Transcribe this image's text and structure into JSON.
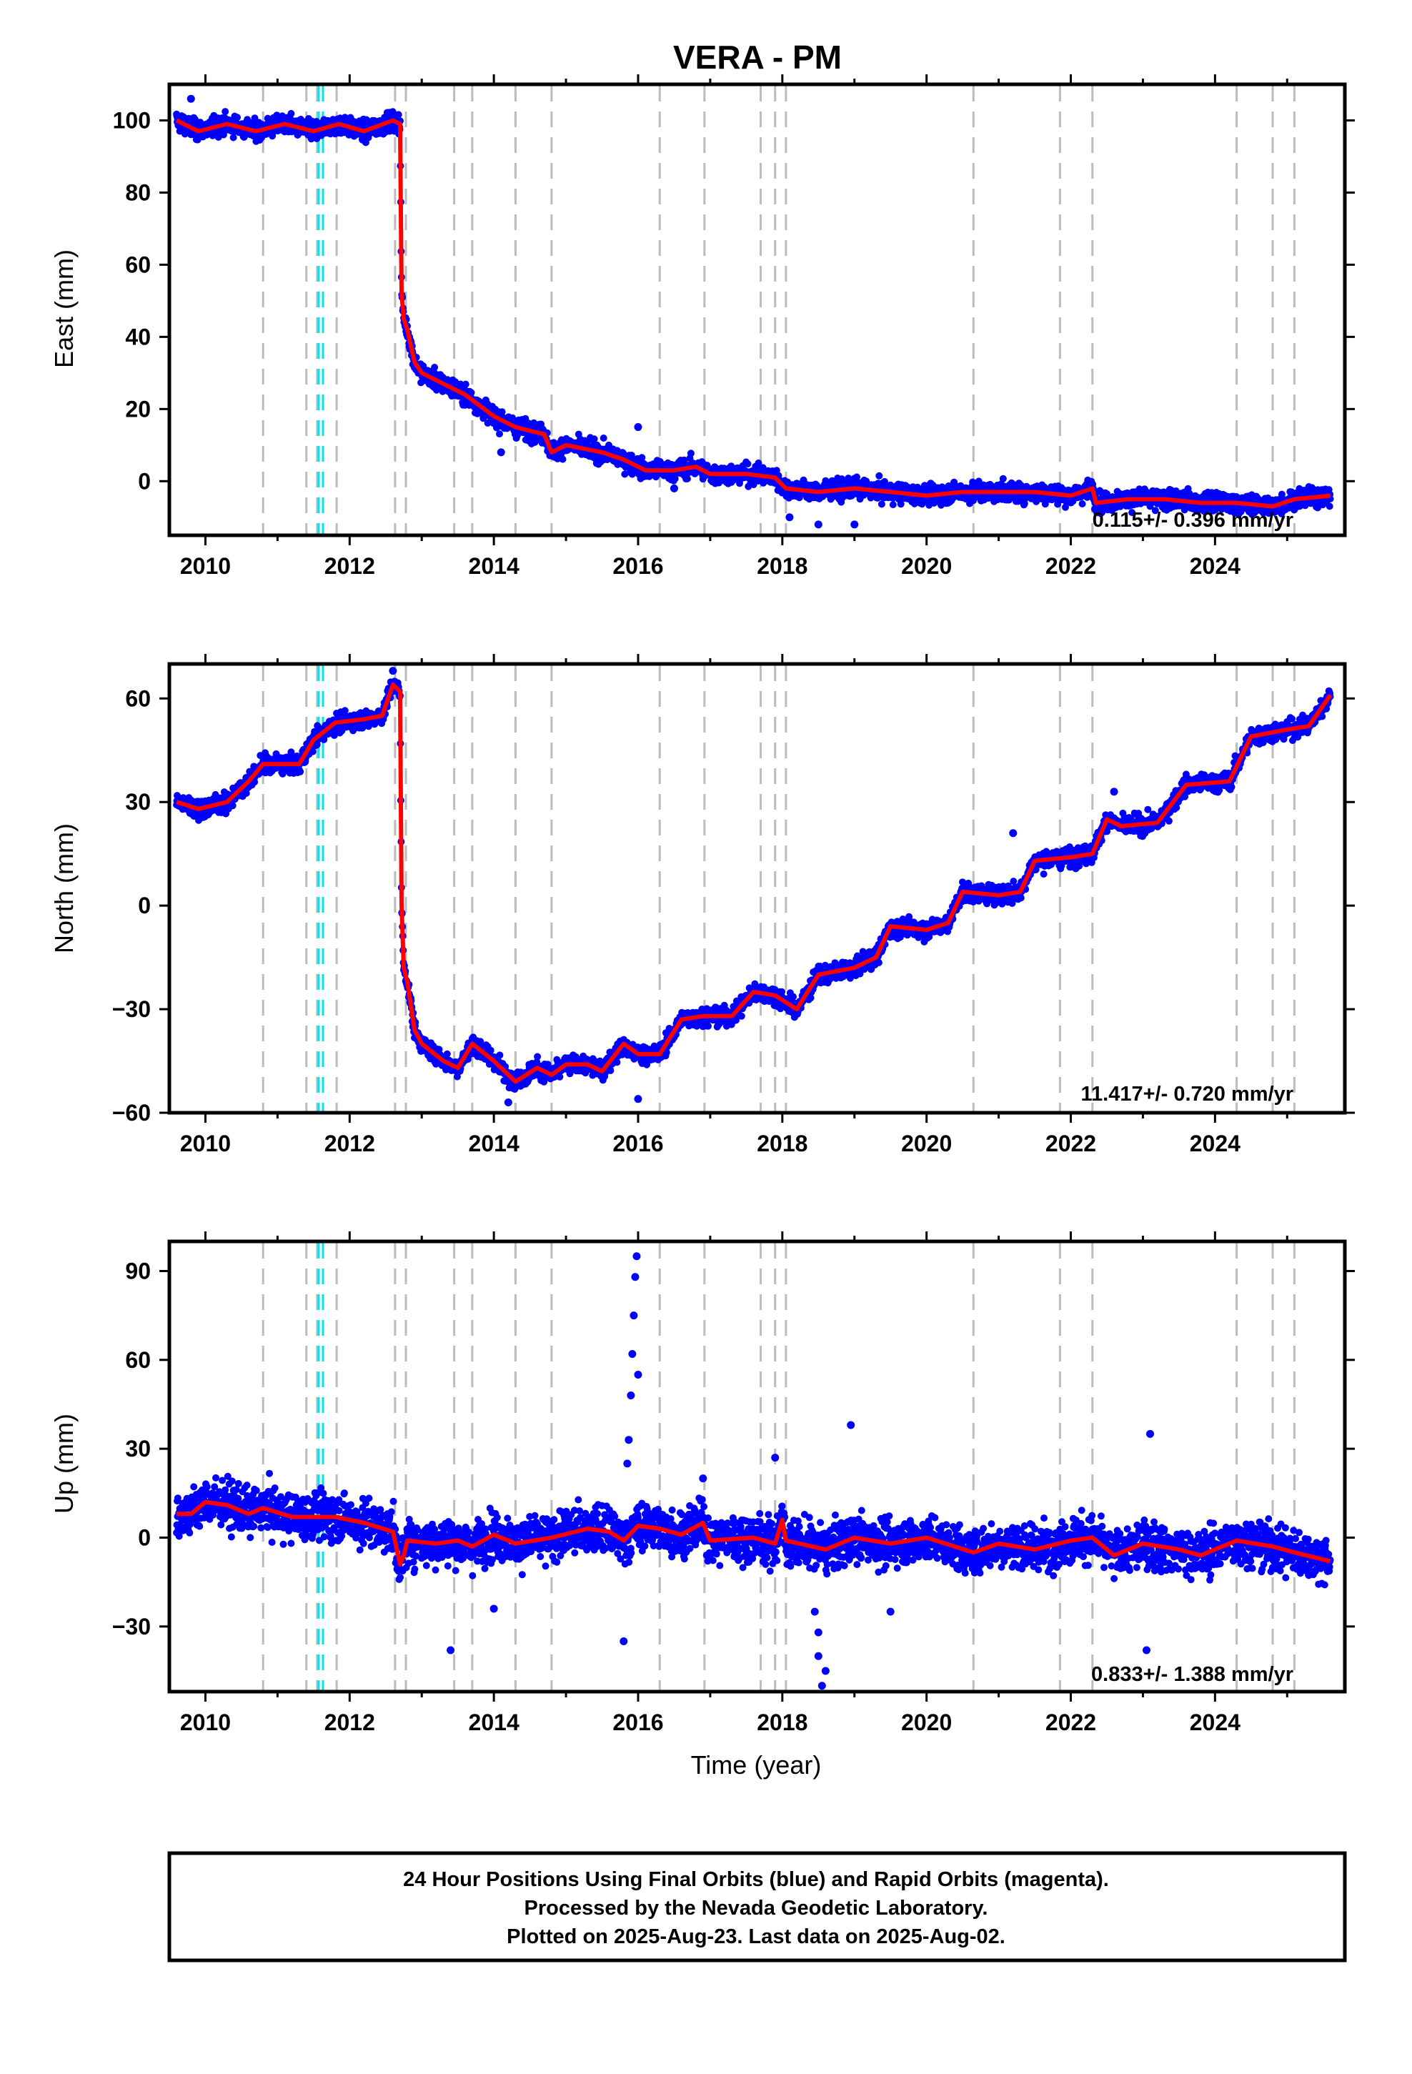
{
  "chart_data": {
    "type": "scatter",
    "title": "VERA - PM",
    "xlabel": "Time (year)",
    "xlim": [
      2009.5,
      2025.8
    ],
    "x_ticks": [
      "2010",
      "2012",
      "2014",
      "2016",
      "2018",
      "2020",
      "2022",
      "2024"
    ],
    "legend": "none",
    "colors": {
      "final_orbit_points": "#0000ff",
      "rapid_orbit_points": "#ff00ff",
      "model_fit": "#ff0000",
      "equipment_change_lines": "#bbbbbb",
      "earthquake_lines": "#00e5ee"
    },
    "equipment_change_epochs": [
      2010.8,
      2011.4,
      2011.55,
      2011.82,
      2012.63,
      2012.78,
      2013.45,
      2013.7,
      2014.3,
      2014.8,
      2016.3,
      2016.92,
      2017.7,
      2017.9,
      2018.05,
      2020.65,
      2021.85,
      2022.3,
      2024.3,
      2024.8,
      2025.1
    ],
    "earthquake_epochs": [
      2011.57,
      2011.63
    ],
    "panels": [
      {
        "id": "east",
        "ylabel": "East (mm)",
        "ylim": [
          -15,
          110
        ],
        "y_ticks": [
          "0",
          "20",
          "40",
          "60",
          "80",
          "100"
        ],
        "rate_text": "0.115+/- 0.396 mm/yr",
        "noise": 2.2,
        "model_fit": [
          [
            2009.6,
            100
          ],
          [
            2009.9,
            97
          ],
          [
            2010.3,
            99
          ],
          [
            2010.7,
            97
          ],
          [
            2011.1,
            99
          ],
          [
            2011.5,
            97
          ],
          [
            2011.85,
            99
          ],
          [
            2012.2,
            97
          ],
          [
            2012.6,
            100
          ],
          [
            2012.7,
            99
          ],
          [
            2012.72,
            52
          ],
          [
            2012.75,
            45
          ],
          [
            2012.8,
            42
          ],
          [
            2012.9,
            33
          ],
          [
            2013.0,
            30
          ],
          [
            2013.3,
            27
          ],
          [
            2013.6,
            24
          ],
          [
            2014.0,
            18
          ],
          [
            2014.3,
            15
          ],
          [
            2014.7,
            13
          ],
          [
            2014.8,
            8
          ],
          [
            2015.0,
            10
          ],
          [
            2015.5,
            8
          ],
          [
            2015.8,
            6
          ],
          [
            2016.1,
            3
          ],
          [
            2016.5,
            3
          ],
          [
            2016.8,
            4
          ],
          [
            2017.0,
            2
          ],
          [
            2017.5,
            2
          ],
          [
            2017.9,
            1
          ],
          [
            2018.05,
            -2
          ],
          [
            2018.5,
            -3
          ],
          [
            2019.0,
            -2
          ],
          [
            2019.5,
            -3
          ],
          [
            2020.0,
            -4
          ],
          [
            2020.5,
            -3
          ],
          [
            2021.0,
            -3
          ],
          [
            2021.5,
            -3
          ],
          [
            2022.0,
            -4
          ],
          [
            2022.3,
            -2
          ],
          [
            2022.35,
            -6
          ],
          [
            2022.8,
            -5
          ],
          [
            2023.3,
            -5
          ],
          [
            2023.8,
            -6
          ],
          [
            2024.3,
            -6
          ],
          [
            2024.8,
            -7
          ],
          [
            2025.1,
            -5
          ],
          [
            2025.6,
            -4
          ]
        ],
        "outliers": [
          [
            2009.8,
            106
          ],
          [
            2014.1,
            8
          ],
          [
            2016.0,
            15
          ],
          [
            2016.5,
            -2
          ],
          [
            2018.1,
            -10
          ],
          [
            2018.5,
            -12
          ],
          [
            2019.0,
            -12
          ]
        ]
      },
      {
        "id": "north",
        "ylabel": "North (mm)",
        "ylim": [
          -60,
          70
        ],
        "y_ticks": [
          "−60",
          "−30",
          "0",
          "30",
          "60"
        ],
        "rate_text": "11.417+/- 0.720 mm/yr",
        "noise": 2.2,
        "model_fit": [
          [
            2009.6,
            30
          ],
          [
            2009.9,
            28
          ],
          [
            2010.3,
            30
          ],
          [
            2010.6,
            36
          ],
          [
            2010.8,
            41
          ],
          [
            2011.3,
            41
          ],
          [
            2011.5,
            48
          ],
          [
            2011.8,
            53
          ],
          [
            2012.2,
            54
          ],
          [
            2012.45,
            55
          ],
          [
            2012.6,
            64
          ],
          [
            2012.7,
            62
          ],
          [
            2012.72,
            0
          ],
          [
            2012.75,
            -18
          ],
          [
            2012.8,
            -22
          ],
          [
            2012.9,
            -36
          ],
          [
            2013.0,
            -40
          ],
          [
            2013.3,
            -45
          ],
          [
            2013.5,
            -47
          ],
          [
            2013.7,
            -40
          ],
          [
            2014.0,
            -45
          ],
          [
            2014.3,
            -51
          ],
          [
            2014.6,
            -47
          ],
          [
            2014.8,
            -49
          ],
          [
            2015.0,
            -46
          ],
          [
            2015.3,
            -46
          ],
          [
            2015.5,
            -48
          ],
          [
            2015.8,
            -40
          ],
          [
            2016.0,
            -43
          ],
          [
            2016.3,
            -43
          ],
          [
            2016.6,
            -33
          ],
          [
            2016.9,
            -32
          ],
          [
            2017.3,
            -32
          ],
          [
            2017.6,
            -25
          ],
          [
            2017.9,
            -26
          ],
          [
            2018.2,
            -30
          ],
          [
            2018.5,
            -20
          ],
          [
            2019.0,
            -18
          ],
          [
            2019.3,
            -15
          ],
          [
            2019.5,
            -6
          ],
          [
            2020.0,
            -7
          ],
          [
            2020.3,
            -5
          ],
          [
            2020.5,
            4
          ],
          [
            2021.0,
            3
          ],
          [
            2021.3,
            4
          ],
          [
            2021.5,
            13
          ],
          [
            2022.0,
            14
          ],
          [
            2022.3,
            15
          ],
          [
            2022.5,
            25
          ],
          [
            2022.7,
            23
          ],
          [
            2023.2,
            24
          ],
          [
            2023.6,
            35
          ],
          [
            2024.2,
            36
          ],
          [
            2024.5,
            49
          ],
          [
            2025.0,
            51
          ],
          [
            2025.3,
            52
          ],
          [
            2025.6,
            61
          ]
        ],
        "outliers": [
          [
            2012.6,
            68
          ],
          [
            2014.2,
            -57
          ],
          [
            2016.0,
            -56
          ],
          [
            2021.2,
            21
          ],
          [
            2022.6,
            33
          ]
        ]
      },
      {
        "id": "up",
        "ylabel": "Up (mm)",
        "ylim": [
          -52,
          100
        ],
        "y_ticks": [
          "−30",
          "0",
          "30",
          "60",
          "90"
        ],
        "rate_text": "0.833+/- 1.388 mm/yr",
        "noise": 6.5,
        "model_fit": [
          [
            2009.6,
            8
          ],
          [
            2009.8,
            8
          ],
          [
            2010.0,
            12
          ],
          [
            2010.3,
            11
          ],
          [
            2010.6,
            8
          ],
          [
            2010.8,
            10
          ],
          [
            2011.2,
            7
          ],
          [
            2011.8,
            7
          ],
          [
            2012.2,
            5
          ],
          [
            2012.6,
            2
          ],
          [
            2012.7,
            -9
          ],
          [
            2012.75,
            -6
          ],
          [
            2012.8,
            -1
          ],
          [
            2013.2,
            -2
          ],
          [
            2013.5,
            -1
          ],
          [
            2013.7,
            -3
          ],
          [
            2014.0,
            1
          ],
          [
            2014.3,
            -2
          ],
          [
            2014.8,
            0
          ],
          [
            2015.3,
            3
          ],
          [
            2015.6,
            2
          ],
          [
            2015.8,
            -1
          ],
          [
            2016.0,
            4
          ],
          [
            2016.3,
            3
          ],
          [
            2016.6,
            1
          ],
          [
            2016.9,
            5
          ],
          [
            2017.0,
            -1
          ],
          [
            2017.6,
            0
          ],
          [
            2017.9,
            -2
          ],
          [
            2018.0,
            6
          ],
          [
            2018.05,
            -1
          ],
          [
            2018.6,
            -4
          ],
          [
            2019.0,
            0
          ],
          [
            2019.5,
            -2
          ],
          [
            2020.0,
            0
          ],
          [
            2020.65,
            -5
          ],
          [
            2021.0,
            -2
          ],
          [
            2021.5,
            -4
          ],
          [
            2022.0,
            -1
          ],
          [
            2022.3,
            0
          ],
          [
            2022.6,
            -6
          ],
          [
            2023.0,
            -2
          ],
          [
            2023.5,
            -4
          ],
          [
            2023.8,
            -6
          ],
          [
            2024.3,
            -1
          ],
          [
            2024.8,
            -3
          ],
          [
            2025.1,
            -5
          ],
          [
            2025.6,
            -8
          ]
        ],
        "outliers": [
          [
            2015.87,
            33
          ],
          [
            2015.9,
            48
          ],
          [
            2015.92,
            62
          ],
          [
            2015.94,
            75
          ],
          [
            2015.96,
            88
          ],
          [
            2015.98,
            95
          ],
          [
            2016.0,
            55
          ],
          [
            2015.85,
            25
          ],
          [
            2015.8,
            -35
          ],
          [
            2018.45,
            -25
          ],
          [
            2018.5,
            -40
          ],
          [
            2018.55,
            -50
          ],
          [
            2018.6,
            -45
          ],
          [
            2018.5,
            -32
          ],
          [
            2018.95,
            38
          ],
          [
            2023.1,
            35
          ],
          [
            2023.05,
            -38
          ],
          [
            2014.0,
            -24
          ],
          [
            2013.4,
            -38
          ],
          [
            2016.9,
            20
          ],
          [
            2019.5,
            -25
          ],
          [
            2017.9,
            27
          ]
        ]
      }
    ],
    "footer_lines": [
      "24 Hour Positions Using Final Orbits (blue) and Rapid Orbits (magenta).",
      "Processed by the Nevada Geodetic Laboratory.",
      "Plotted on 2025-Aug-23. Last data on 2025-Aug-02."
    ]
  }
}
